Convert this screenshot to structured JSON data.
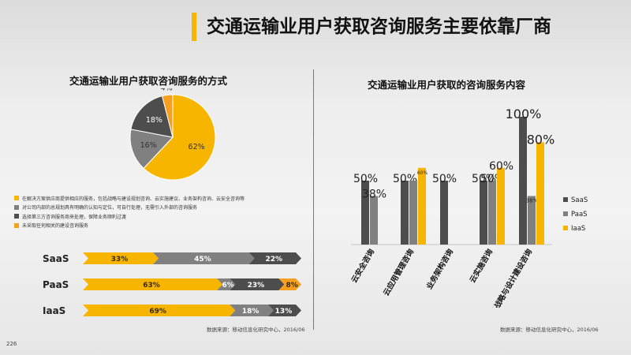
{
  "title": "交通运输业用户获取咨询服务主要依靠厂商",
  "pie_title": "交通运输业用户获取咨询服务的方式",
  "bar_title": "交通运输业用户获取的咨询服务内容",
  "legend_items": [
    {
      "label": "在解决方案供应商提供相应的服务，包括战略与建设规划咨询、云实施建议、业务架构咨询、云安全咨询等",
      "color": "#f7b500"
    },
    {
      "label": "对公司内部的总规划具有明确的认知与定位，可自行处理，无需引入外部的咨询服务",
      "color": "#808080"
    },
    {
      "label": "选择第三方咨询服务商来处理，保障业务顺利过渡",
      "color": "#4d4d4d"
    },
    {
      "label": "未采取任何相关的建设咨询服务",
      "color": "#f7a020"
    }
  ],
  "source_left": "数据来源：移动信息化研究中心，2016/06",
  "source_right": "数据来源：移动信息化研究中心，2016/06",
  "page_number": "226",
  "colors": {
    "yellow": "#f7b500",
    "gray": "#808080",
    "dark": "#4d4d4d",
    "orange": "#f7a020"
  },
  "chart_data": [
    {
      "type": "pie",
      "title": "交通运输业用户获取咨询服务的方式",
      "slices": [
        {
          "label": "62%",
          "value": 62,
          "color": "#f7b500"
        },
        {
          "label": "16%",
          "value": 16,
          "color": "#808080"
        },
        {
          "label": "18%",
          "value": 18,
          "color": "#4d4d4d"
        },
        {
          "label": "4%",
          "value": 4,
          "color": "#f7a020"
        }
      ]
    },
    {
      "type": "bar",
      "orientation": "horizontal-stacked",
      "categories": [
        "SaaS",
        "PaaS",
        "IaaS"
      ],
      "rows": [
        {
          "name": "SaaS",
          "segments": [
            {
              "value": 33,
              "label": "33%",
              "color": "#f7b500"
            },
            {
              "value": 45,
              "label": "45%",
              "color": "#808080"
            },
            {
              "value": 22,
              "label": "22%",
              "color": "#4d4d4d"
            }
          ]
        },
        {
          "name": "PaaS",
          "segments": [
            {
              "value": 63,
              "label": "63%",
              "color": "#f7b500"
            },
            {
              "value": 6,
              "label": "6%",
              "color": "#808080"
            },
            {
              "value": 23,
              "label": "23%",
              "color": "#4d4d4d"
            },
            {
              "value": 8,
              "label": "8%",
              "color": "#f7a020"
            }
          ]
        },
        {
          "name": "IaaS",
          "segments": [
            {
              "value": 69,
              "label": "69%",
              "color": "#f7b500"
            },
            {
              "value": 18,
              "label": "18%",
              "color": "#808080"
            },
            {
              "value": 13,
              "label": "13%",
              "color": "#4d4d4d"
            }
          ]
        }
      ]
    },
    {
      "type": "bar",
      "title": "交通运输业用户获取的咨询服务内容",
      "categories": [
        "云安全咨询",
        "云应用管理咨询",
        "业务架构咨询",
        "云实施咨询",
        "云战略与设计建设咨询"
      ],
      "series": [
        {
          "name": "SaaS",
          "color": "#4d4d4d",
          "values": [
            50,
            50,
            50,
            50,
            100
          ],
          "labels": [
            "50%",
            "50%",
            "50%",
            "50%",
            "100%"
          ]
        },
        {
          "name": "PaaS",
          "color": "#808080",
          "values": [
            38,
            50,
            0,
            50,
            38
          ],
          "labels": [
            "38%",
            "",
            "",
            "50%",
            "38%"
          ]
        },
        {
          "name": "IaaS",
          "color": "#f7b500",
          "values": [
            0,
            60,
            0,
            60,
            80
          ],
          "labels": [
            "",
            "60%",
            "",
            "60%",
            "80%"
          ]
        }
      ],
      "ylim": [
        0,
        100
      ]
    }
  ]
}
